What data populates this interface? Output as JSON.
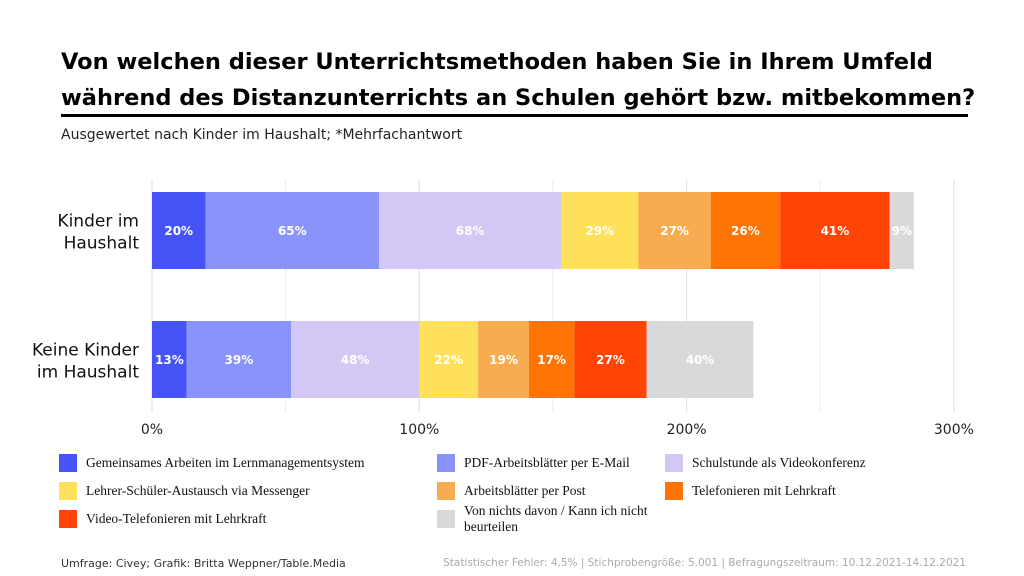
{
  "header": {
    "title_line1": "Von welchen dieser Unterrichtsmethoden haben Sie in Ihrem Umfeld",
    "title_line2": "während des Distanzunterrichts an Schulen gehört bzw. mitbekommen?",
    "subtitle": "Ausgewertet nach Kinder im Haushalt; *Mehrfachantwort"
  },
  "chart_data": {
    "type": "bar",
    "orientation": "horizontal",
    "stacked": true,
    "title": "Von welchen dieser Unterrichtsmethoden haben Sie in Ihrem Umfeld während des Distanzunterrichts an Schulen gehört bzw. mitbekommen?",
    "categories": [
      "Kinder im Haushalt",
      "Keine Kinder im Haushalt"
    ],
    "xlim": [
      0,
      300
    ],
    "xticks": [
      0,
      100,
      200,
      300
    ],
    "xtick_labels": [
      "0%",
      "100%",
      "200%",
      "300%"
    ],
    "grid": true,
    "series": [
      {
        "name": "Gemeinsames Arbeiten im Lernmanagementsystem",
        "color": "#4553F7",
        "values": [
          20,
          13
        ],
        "labels": [
          "20%",
          "13%"
        ]
      },
      {
        "name": "PDF-Arbeitsblätter per E-Mail",
        "color": "#8A93FA",
        "values": [
          65,
          39
        ],
        "labels": [
          "65%",
          "39%"
        ]
      },
      {
        "name": "Schulstunde als Videokonferenz",
        "color": "#D3C8F3",
        "values": [
          68,
          48
        ],
        "labels": [
          "68%",
          "48%"
        ]
      },
      {
        "name": "Lehrer-Schüler-Austausch via Messenger",
        "color": "#FFE05A",
        "values": [
          29,
          22
        ],
        "labels": [
          "29%",
          "22%"
        ]
      },
      {
        "name": "Arbeitsblätter per Post",
        "color": "#F8AC52",
        "values": [
          27,
          19
        ],
        "labels": [
          "27%",
          "19%"
        ]
      },
      {
        "name": "Telefonieren mit Lehrkraft",
        "color": "#FF7505",
        "values": [
          26,
          17
        ],
        "labels": [
          "26%",
          "17%"
        ]
      },
      {
        "name": "Video-Telefonieren mit Lehrkraft",
        "color": "#FF4405",
        "values": [
          41,
          27
        ],
        "labels": [
          "41%",
          "27%"
        ]
      },
      {
        "name": "Von nichts davon / Kann ich nicht beurteilen",
        "color": "#D9D9D9",
        "values": [
          9,
          40
        ],
        "labels": [
          "9%",
          "40%"
        ]
      }
    ],
    "category_lines": [
      [
        "Kinder im",
        "Haushalt"
      ],
      [
        "Keine Kinder",
        "im Haushalt"
      ]
    ],
    "legend_position": "bottom"
  },
  "footer": {
    "source": "Umfrage: Civey; Grafik: Britta Weppner/Table.Media",
    "note": "Statistischer Fehler: 4,5% | Stichprobengröße: 5.001 | Befragungszeitraum: 10.12.2021-14.12.2021"
  }
}
